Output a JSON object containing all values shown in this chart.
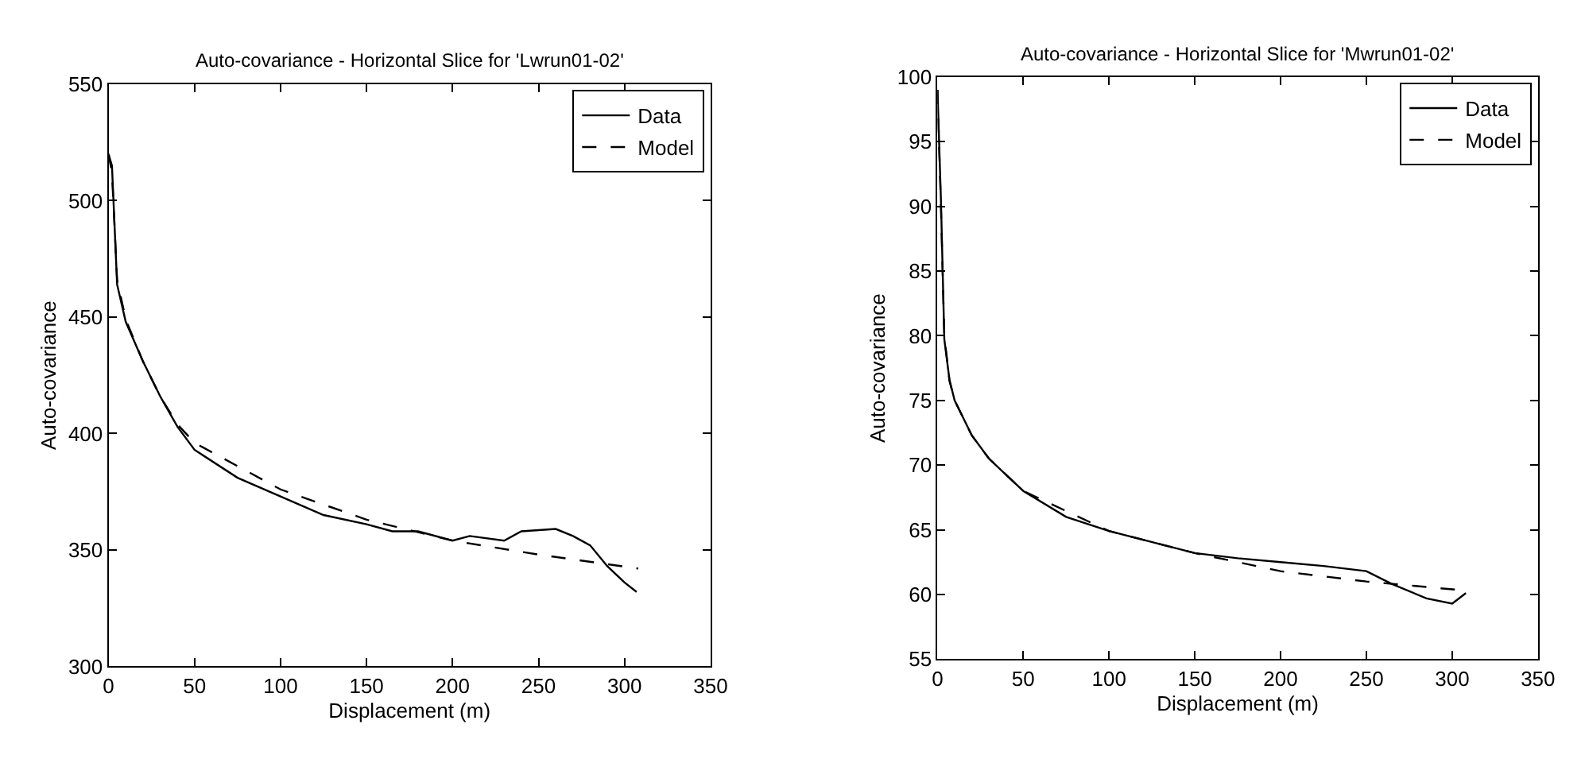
{
  "chart_data": [
    {
      "type": "line",
      "title": "Auto-covariance - Horizontal Slice for 'Lwrun01-02'",
      "xlabel": "Displacement (m)",
      "ylabel": "Auto-covariance",
      "xlim": [
        0,
        350
      ],
      "ylim": [
        300,
        550
      ],
      "xticks": [
        0,
        50,
        100,
        150,
        200,
        250,
        300,
        350
      ],
      "yticks": [
        300,
        350,
        400,
        450,
        500,
        550
      ],
      "legend": "top right",
      "marker": "none",
      "series": [
        {
          "name": "Data",
          "color": "#000000",
          "line_style": "solid",
          "x": [
            0,
            2,
            5,
            10,
            20,
            30,
            40,
            50,
            75,
            100,
            125,
            150,
            165,
            180,
            200,
            210,
            230,
            240,
            260,
            270,
            280,
            290,
            300,
            307
          ],
          "values": [
            520,
            515,
            464,
            448,
            431,
            416,
            403,
            393,
            381,
            373,
            365,
            361,
            358,
            358,
            354,
            356,
            354,
            358,
            359,
            356,
            352,
            343,
            336,
            332
          ]
        },
        {
          "name": "Model",
          "color": "#000000",
          "line_style": "dashed",
          "x": [
            0,
            2,
            5,
            10,
            20,
            30,
            40,
            50,
            100,
            150,
            200,
            250,
            308
          ],
          "values": [
            520,
            512,
            466,
            449,
            431,
            416,
            404,
            396,
            376,
            363,
            354,
            348,
            342
          ]
        }
      ]
    },
    {
      "type": "line",
      "title": "Auto-covariance - Horizontal Slice for 'Mwrun01-02'",
      "xlabel": "Displacement (m)",
      "ylabel": "Auto-covariance",
      "xlim": [
        0,
        350
      ],
      "ylim": [
        55,
        100
      ],
      "xticks": [
        0,
        50,
        100,
        150,
        200,
        250,
        300,
        350
      ],
      "yticks": [
        55,
        60,
        65,
        70,
        75,
        80,
        85,
        90,
        95,
        100
      ],
      "legend": "top right",
      "marker": "none",
      "series": [
        {
          "name": "Data",
          "color": "#000000",
          "line_style": "solid",
          "x": [
            0,
            2,
            4,
            7,
            10,
            20,
            30,
            50,
            75,
            100,
            150,
            175,
            200,
            225,
            250,
            265,
            285,
            300,
            308
          ],
          "values": [
            99,
            90.6,
            79.7,
            76.6,
            75,
            72.3,
            70.5,
            68,
            66,
            64.9,
            63.2,
            62.8,
            62.5,
            62.2,
            61.8,
            60.8,
            59.7,
            59.3,
            60.1
          ]
        },
        {
          "name": "Model",
          "color": "#000000",
          "line_style": "dashed",
          "x": [
            0,
            2,
            4,
            7,
            10,
            20,
            30,
            50,
            100,
            150,
            200,
            250,
            308
          ],
          "values": [
            99,
            90,
            80,
            76.5,
            75,
            72.3,
            70.5,
            68,
            64.9,
            63.2,
            61.8,
            61.0,
            60.3
          ]
        }
      ]
    }
  ]
}
